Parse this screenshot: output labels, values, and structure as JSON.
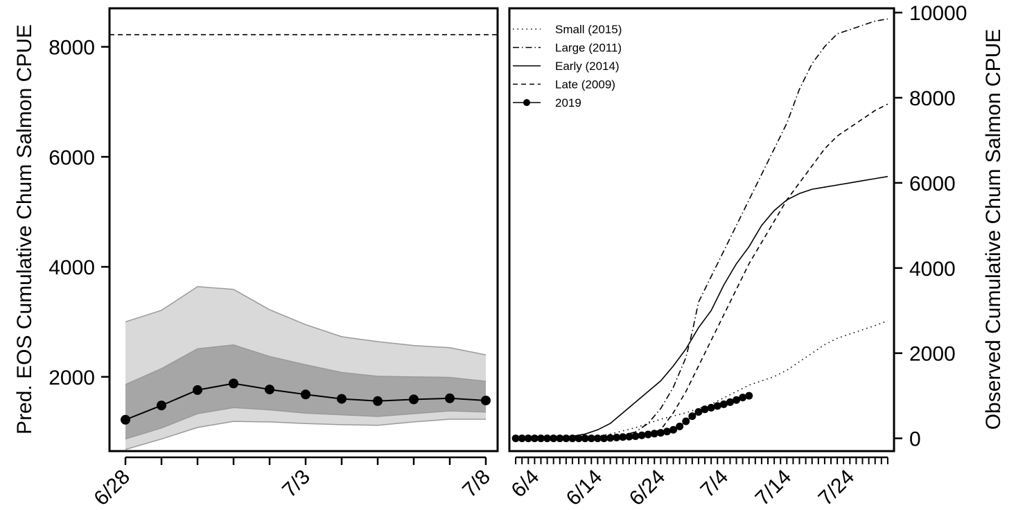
{
  "chart_data": [
    {
      "panel": "left",
      "type": "line",
      "ylabel": "Pred. EOS Cumulative Chum Salmon CPUE",
      "ylim": [
        650,
        8700
      ],
      "y_ticks": [
        2000,
        4000,
        6000,
        8000
      ],
      "x_tick_labels": [
        {
          "x": 0,
          "label": "6/28"
        },
        {
          "x": 5,
          "label": "7/3"
        },
        {
          "x": 10,
          "label": "7/8"
        }
      ],
      "x_minor_ticks": [
        0,
        1,
        2,
        3,
        4,
        5,
        6,
        7,
        8,
        9,
        10
      ],
      "reference_line": 8220,
      "prediction": {
        "x": [
          0,
          1,
          2,
          3,
          4,
          5,
          6,
          7,
          8,
          9,
          10
        ],
        "values": [
          1220,
          1480,
          1760,
          1880,
          1770,
          1680,
          1600,
          1560,
          1590,
          1610,
          1570
        ]
      },
      "inner_band": {
        "x": [
          0,
          1,
          2,
          3,
          4,
          5,
          6,
          7,
          8,
          9,
          10
        ],
        "lower": [
          870,
          1070,
          1330,
          1440,
          1400,
          1340,
          1310,
          1280,
          1330,
          1380,
          1360
        ],
        "upper": [
          1860,
          2150,
          2510,
          2580,
          2370,
          2220,
          2080,
          2010,
          2000,
          1990,
          1920
        ]
      },
      "outer_band": {
        "x": [
          0,
          1,
          2,
          3,
          4,
          5,
          6,
          7,
          8,
          9,
          10
        ],
        "lower": [
          680,
          870,
          1080,
          1190,
          1180,
          1150,
          1130,
          1120,
          1180,
          1230,
          1230
        ],
        "upper": [
          3000,
          3210,
          3640,
          3590,
          3220,
          2950,
          2730,
          2640,
          2570,
          2530,
          2400
        ]
      }
    },
    {
      "panel": "right",
      "type": "line",
      "ylabel": "Observed Cumulative Chum Salmon CPUE",
      "ylim": [
        -300,
        10100
      ],
      "y_ticks": [
        0,
        2000,
        4000,
        6000,
        8000,
        10000
      ],
      "x_tick_labels": [
        {
          "x": 4,
          "label": "6/4"
        },
        {
          "x": 14,
          "label": "6/14"
        },
        {
          "x": 24,
          "label": "6/24"
        },
        {
          "x": 34,
          "label": "7/4"
        },
        {
          "x": 44,
          "label": "7/14"
        },
        {
          "x": 54,
          "label": "7/24"
        }
      ],
      "xlim": [
        0,
        61
      ],
      "legend": {
        "position": "top-left",
        "entries": [
          {
            "label": "Small (2015)",
            "style": "dotted"
          },
          {
            "label": "Large (2011)",
            "style": "dashdot"
          },
          {
            "label": "Early (2014)",
            "style": "solid"
          },
          {
            "label": "Late (2009)",
            "style": "dashed"
          },
          {
            "label": "2019",
            "style": "solid-points"
          }
        ]
      },
      "series": [
        {
          "name": "Small (2015)",
          "style": "dotted",
          "x": [
            1,
            12,
            16,
            20,
            24,
            28,
            30,
            32,
            34,
            36,
            38,
            40,
            42,
            44,
            46,
            48,
            50,
            52,
            54,
            56,
            58,
            60
          ],
          "values": [
            0,
            0,
            100,
            250,
            450,
            600,
            700,
            800,
            950,
            1100,
            1250,
            1350,
            1450,
            1600,
            1800,
            2000,
            2200,
            2350,
            2450,
            2550,
            2650,
            2760
          ]
        },
        {
          "name": "Large (2011)",
          "style": "dashdot",
          "x": [
            1,
            16,
            20,
            22,
            24,
            26,
            28,
            29,
            30,
            32,
            34,
            36,
            38,
            40,
            42,
            44,
            46,
            48,
            50,
            52,
            54,
            56,
            58,
            60
          ],
          "values": [
            0,
            0,
            150,
            350,
            700,
            1200,
            1900,
            2500,
            3200,
            3800,
            4400,
            5000,
            5600,
            6200,
            6800,
            7400,
            8200,
            8800,
            9200,
            9500,
            9600,
            9700,
            9800,
            9850
          ]
        },
        {
          "name": "Early (2014)",
          "style": "solid",
          "x": [
            1,
            8,
            10,
            12,
            14,
            16,
            18,
            20,
            22,
            24,
            26,
            28,
            30,
            32,
            34,
            36,
            38,
            40,
            42,
            44,
            46,
            48,
            50,
            52,
            54,
            56,
            58,
            60
          ],
          "values": [
            0,
            0,
            50,
            100,
            200,
            350,
            600,
            850,
            1100,
            1350,
            1700,
            2100,
            2600,
            3000,
            3600,
            4100,
            4500,
            5000,
            5350,
            5600,
            5750,
            5850,
            5900,
            5950,
            6000,
            6050,
            6100,
            6150
          ]
        },
        {
          "name": "Late (2009)",
          "style": "dashed",
          "x": [
            1,
            20,
            24,
            26,
            28,
            30,
            32,
            34,
            36,
            38,
            40,
            42,
            44,
            46,
            48,
            50,
            52,
            54,
            56,
            58,
            60
          ],
          "values": [
            0,
            0,
            200,
            600,
            1100,
            1700,
            2300,
            2900,
            3500,
            4100,
            4600,
            5100,
            5600,
            6000,
            6400,
            6800,
            7100,
            7300,
            7500,
            7700,
            7850
          ]
        },
        {
          "name": "2019",
          "style": "solid-points",
          "x": [
            1,
            2,
            3,
            4,
            5,
            6,
            7,
            8,
            9,
            10,
            11,
            12,
            13,
            14,
            15,
            16,
            17,
            18,
            19,
            20,
            21,
            22,
            23,
            24,
            25,
            26,
            27,
            28,
            29,
            30,
            31,
            32,
            33,
            34,
            35,
            36,
            37,
            38
          ],
          "values": [
            0,
            0,
            0,
            0,
            0,
            0,
            0,
            0,
            0,
            0,
            0,
            0,
            0,
            0,
            0,
            10,
            20,
            30,
            40,
            50,
            70,
            90,
            110,
            130,
            160,
            200,
            280,
            400,
            520,
            620,
            680,
            720,
            760,
            800,
            850,
            900,
            960,
            1000
          ]
        }
      ]
    }
  ]
}
